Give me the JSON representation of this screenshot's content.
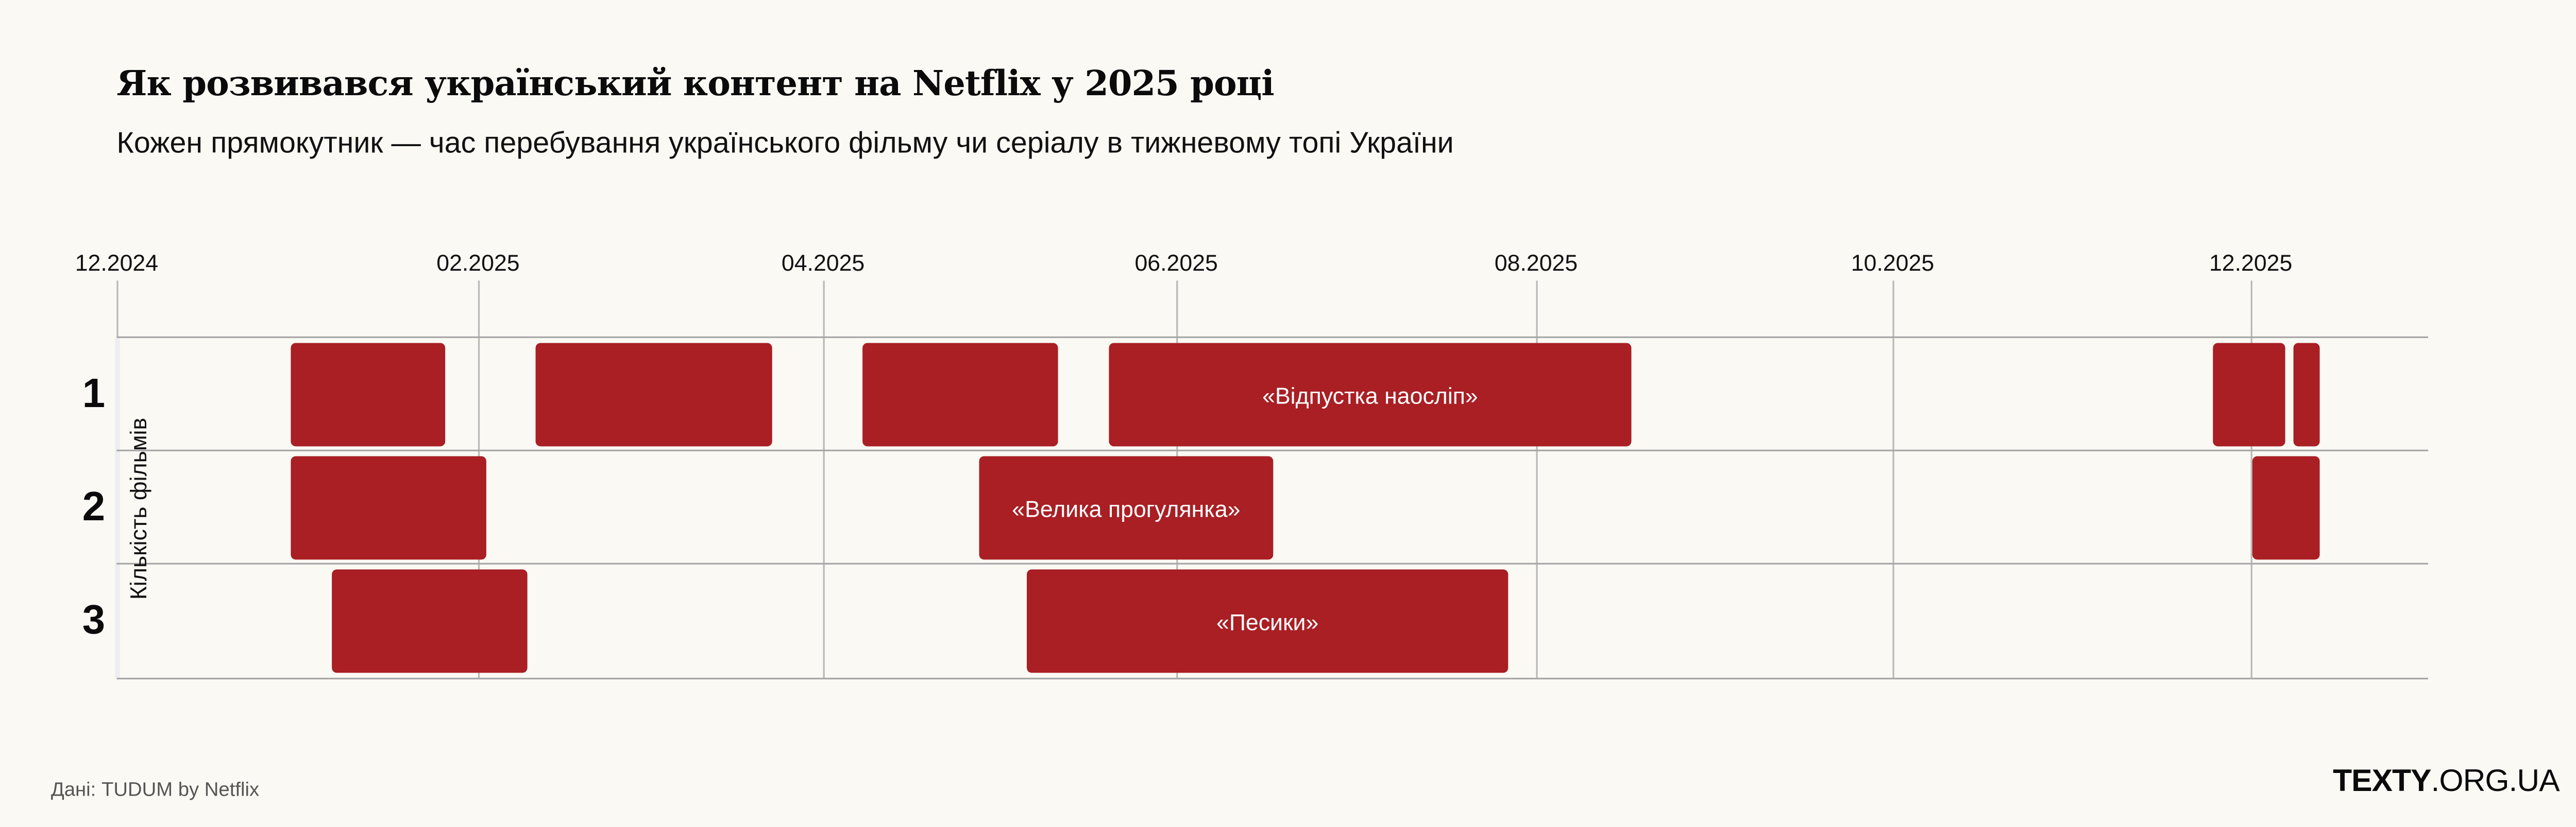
{
  "header": {
    "title": "Як розвивався український контент на Netflix у 2025 році",
    "subtitle": "Кожен прямокутник — час перебування українського фільму чи серіалу в тижневому топі України"
  },
  "footer": {
    "source": "Дані: TUDUM by Netflix",
    "logo_bold": "TEXTY",
    "logo_rest": ".ORG.UA"
  },
  "colors": {
    "bar": "#a91f24",
    "background": "#faf9f4",
    "grid": "#b8b8b8"
  },
  "chart_data": {
    "type": "gantt",
    "title": "Як розвивався український контент на Netflix у 2025 році",
    "subtitle": "Кожен прямокутник — час перебування українського фільму чи серіалу в тижневому топі України",
    "xlabel": "",
    "ylabel": "Кількість фільмів",
    "x_ticks": [
      "12.2024",
      "02.2025",
      "04.2025",
      "06.2025",
      "08.2025",
      "10.2025",
      "12.2025"
    ],
    "y_categories": [
      "1",
      "2",
      "3"
    ],
    "grid": true,
    "series": [
      {
        "row": 1,
        "start": "2025-01-15",
        "end": "2025-01-28",
        "label": ""
      },
      {
        "row": 1,
        "start": "2025-02-05",
        "end": "2025-03-26",
        "label": ""
      },
      {
        "row": 1,
        "start": "2025-04-12",
        "end": "2025-05-24",
        "label": ""
      },
      {
        "row": 1,
        "start": "2025-05-26",
        "end": "2025-08-24",
        "label": "«Відпустка наосліп»"
      },
      {
        "row": 1,
        "start": "2025-11-27",
        "end": "2025-12-09",
        "label": ""
      },
      {
        "row": 1,
        "start": "2025-12-12",
        "end": "2025-12-16",
        "label": ""
      },
      {
        "row": 2,
        "start": "2025-01-15",
        "end": "2025-02-04",
        "label": ""
      },
      {
        "row": 2,
        "start": "2025-05-03",
        "end": "2025-06-21",
        "label": "«Велика прогулянка»"
      },
      {
        "row": 2,
        "start": "2025-12-04",
        "end": "2025-12-16",
        "label": ""
      },
      {
        "row": 3,
        "start": "2025-01-22",
        "end": "2025-02-11",
        "label": ""
      },
      {
        "row": 3,
        "start": "2025-05-11",
        "end": "2025-07-31",
        "label": "«Песики»"
      }
    ]
  },
  "axis": {
    "ticks": [
      {
        "label": "12.2024",
        "x": 71
      },
      {
        "label": "02.2025",
        "x": 291
      },
      {
        "label": "04.2025",
        "x": 501
      },
      {
        "label": "06.2025",
        "x": 716
      },
      {
        "label": "08.2025",
        "x": 935
      },
      {
        "label": "10.2025",
        "x": 1152
      },
      {
        "label": "12.2025",
        "x": 1370
      }
    ],
    "rows": [
      "1",
      "2",
      "3"
    ],
    "y_title": "Кількість фільмів"
  },
  "bars": [
    {
      "row": 0,
      "x1": 177,
      "x2": 271,
      "label": ""
    },
    {
      "row": 0,
      "x1": 326,
      "x2": 470,
      "label": ""
    },
    {
      "row": 0,
      "x1": 525,
      "x2": 644,
      "label": ""
    },
    {
      "row": 0,
      "x1": 675,
      "x2": 993,
      "label": "«Відпустка наосліп»"
    },
    {
      "row": 0,
      "x1": 1347,
      "x2": 1391,
      "label": ""
    },
    {
      "row": 0,
      "x1": 1396,
      "x2": 1412,
      "label": ""
    },
    {
      "row": 1,
      "x1": 177,
      "x2": 296,
      "label": ""
    },
    {
      "row": 1,
      "x1": 596,
      "x2": 775,
      "label": "«Велика прогулянка»"
    },
    {
      "row": 1,
      "x1": 1371,
      "x2": 1412,
      "label": ""
    },
    {
      "row": 2,
      "x1": 202,
      "x2": 321,
      "label": ""
    },
    {
      "row": 2,
      "x1": 625,
      "x2": 918,
      "label": "«Песики»"
    }
  ]
}
